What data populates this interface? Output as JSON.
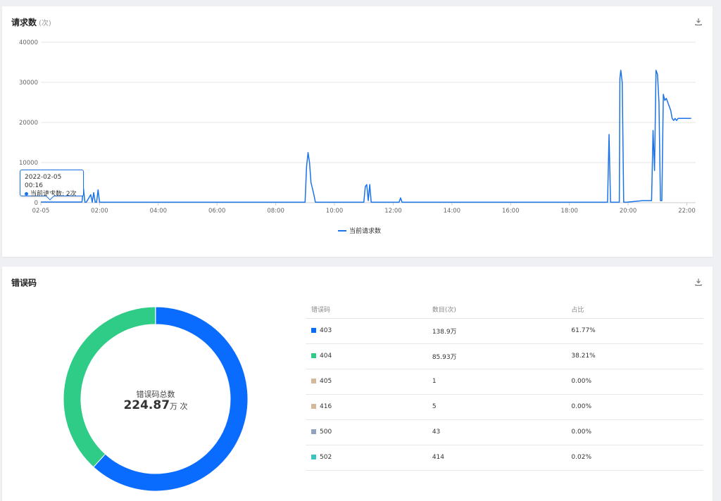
{
  "requests_card": {
    "title": "请求数",
    "unit": "(次)",
    "download_icon": "download-icon",
    "tooltip": {
      "date": "2022-02-05 00:16",
      "label": "当前请求数: 2次"
    },
    "legend": "当前请求数",
    "line_color": "#1a73e8"
  },
  "errors_card": {
    "title": "错误码",
    "download_icon": "download-icon",
    "center_label": "错误码总数",
    "center_value": "224.87",
    "center_unit": "万 次",
    "table": {
      "headers": [
        "错误码",
        "数目(次)",
        "占比"
      ],
      "rows": [
        {
          "code": "403",
          "count": "138.9万",
          "ratio": "61.77%",
          "color": "#0a6cff"
        },
        {
          "code": "404",
          "count": "85.93万",
          "ratio": "38.21%",
          "color": "#2ecc87"
        },
        {
          "code": "405",
          "count": "1",
          "ratio": "0.00%",
          "color": "#d4b89a"
        },
        {
          "code": "416",
          "count": "5",
          "ratio": "0.00%",
          "color": "#d4b89a"
        },
        {
          "code": "500",
          "count": "43",
          "ratio": "0.00%",
          "color": "#8fa3bf"
        },
        {
          "code": "502",
          "count": "414",
          "ratio": "0.02%",
          "color": "#3cc4c0"
        }
      ]
    }
  },
  "chart_data": [
    {
      "type": "line",
      "title": "请求数",
      "ylabel": "(次)",
      "ylim": [
        0,
        40000
      ],
      "yticks": [
        "0",
        "10000",
        "20000",
        "30000",
        "40000"
      ],
      "xlim": [
        0,
        22.3
      ],
      "xticks": [
        "02-05",
        "02:00",
        "04:00",
        "06:00",
        "08:00",
        "10:00",
        "12:00",
        "14:00",
        "16:00",
        "18:00",
        "20:00",
        "22:00"
      ],
      "series": [
        {
          "name": "当前请求数",
          "x": [
            0,
            1.4,
            1.45,
            1.5,
            1.55,
            1.7,
            1.75,
            1.8,
            1.85,
            1.9,
            1.95,
            2.0,
            2.1,
            2.15,
            2.2,
            2.6,
            9.0,
            9.05,
            9.1,
            9.15,
            9.2,
            9.3,
            9.35,
            9.4,
            10.0,
            11.0,
            11.05,
            11.1,
            11.15,
            11.2,
            11.25,
            11.3,
            11.35,
            12.2,
            12.25,
            12.3,
            12.35,
            19.3,
            19.35,
            19.4,
            19.45,
            19.5,
            19.55,
            19.7,
            19.72,
            19.75,
            19.8,
            19.85,
            19.9,
            19.95,
            20.5,
            20.7,
            20.8,
            20.85,
            20.9,
            20.95,
            21.0,
            21.05,
            21.1,
            21.15,
            21.2,
            21.25,
            21.3,
            21.35,
            21.45,
            21.5,
            21.55,
            21.6,
            21.65,
            21.7,
            21.8,
            21.9,
            22.0,
            22.1,
            22.15
          ],
          "y": [
            150,
            150,
            3500,
            100,
            100,
            2000,
            100,
            2500,
            100,
            100,
            3200,
            100,
            100,
            100,
            100,
            100,
            100,
            9000,
            12500,
            10000,
            5000,
            2000,
            100,
            100,
            100,
            100,
            4000,
            4500,
            500,
            4500,
            100,
            100,
            100,
            100,
            1200,
            100,
            100,
            100,
            17000,
            100,
            100,
            100,
            100,
            100,
            31000,
            33000,
            30000,
            100,
            100,
            100,
            500,
            500,
            500,
            18000,
            8000,
            33000,
            32000,
            25000,
            500,
            500,
            27000,
            25500,
            26000,
            25000,
            23000,
            21000,
            20500,
            21000,
            20500,
            21000,
            21000,
            21000,
            21000,
            21000,
            21000
          ]
        }
      ]
    },
    {
      "type": "pie",
      "title": "错误码",
      "categories": [
        "403",
        "404",
        "405",
        "416",
        "500",
        "502"
      ],
      "values": [
        61.77,
        38.21,
        0.0,
        0.0,
        0.0,
        0.02
      ]
    }
  ]
}
